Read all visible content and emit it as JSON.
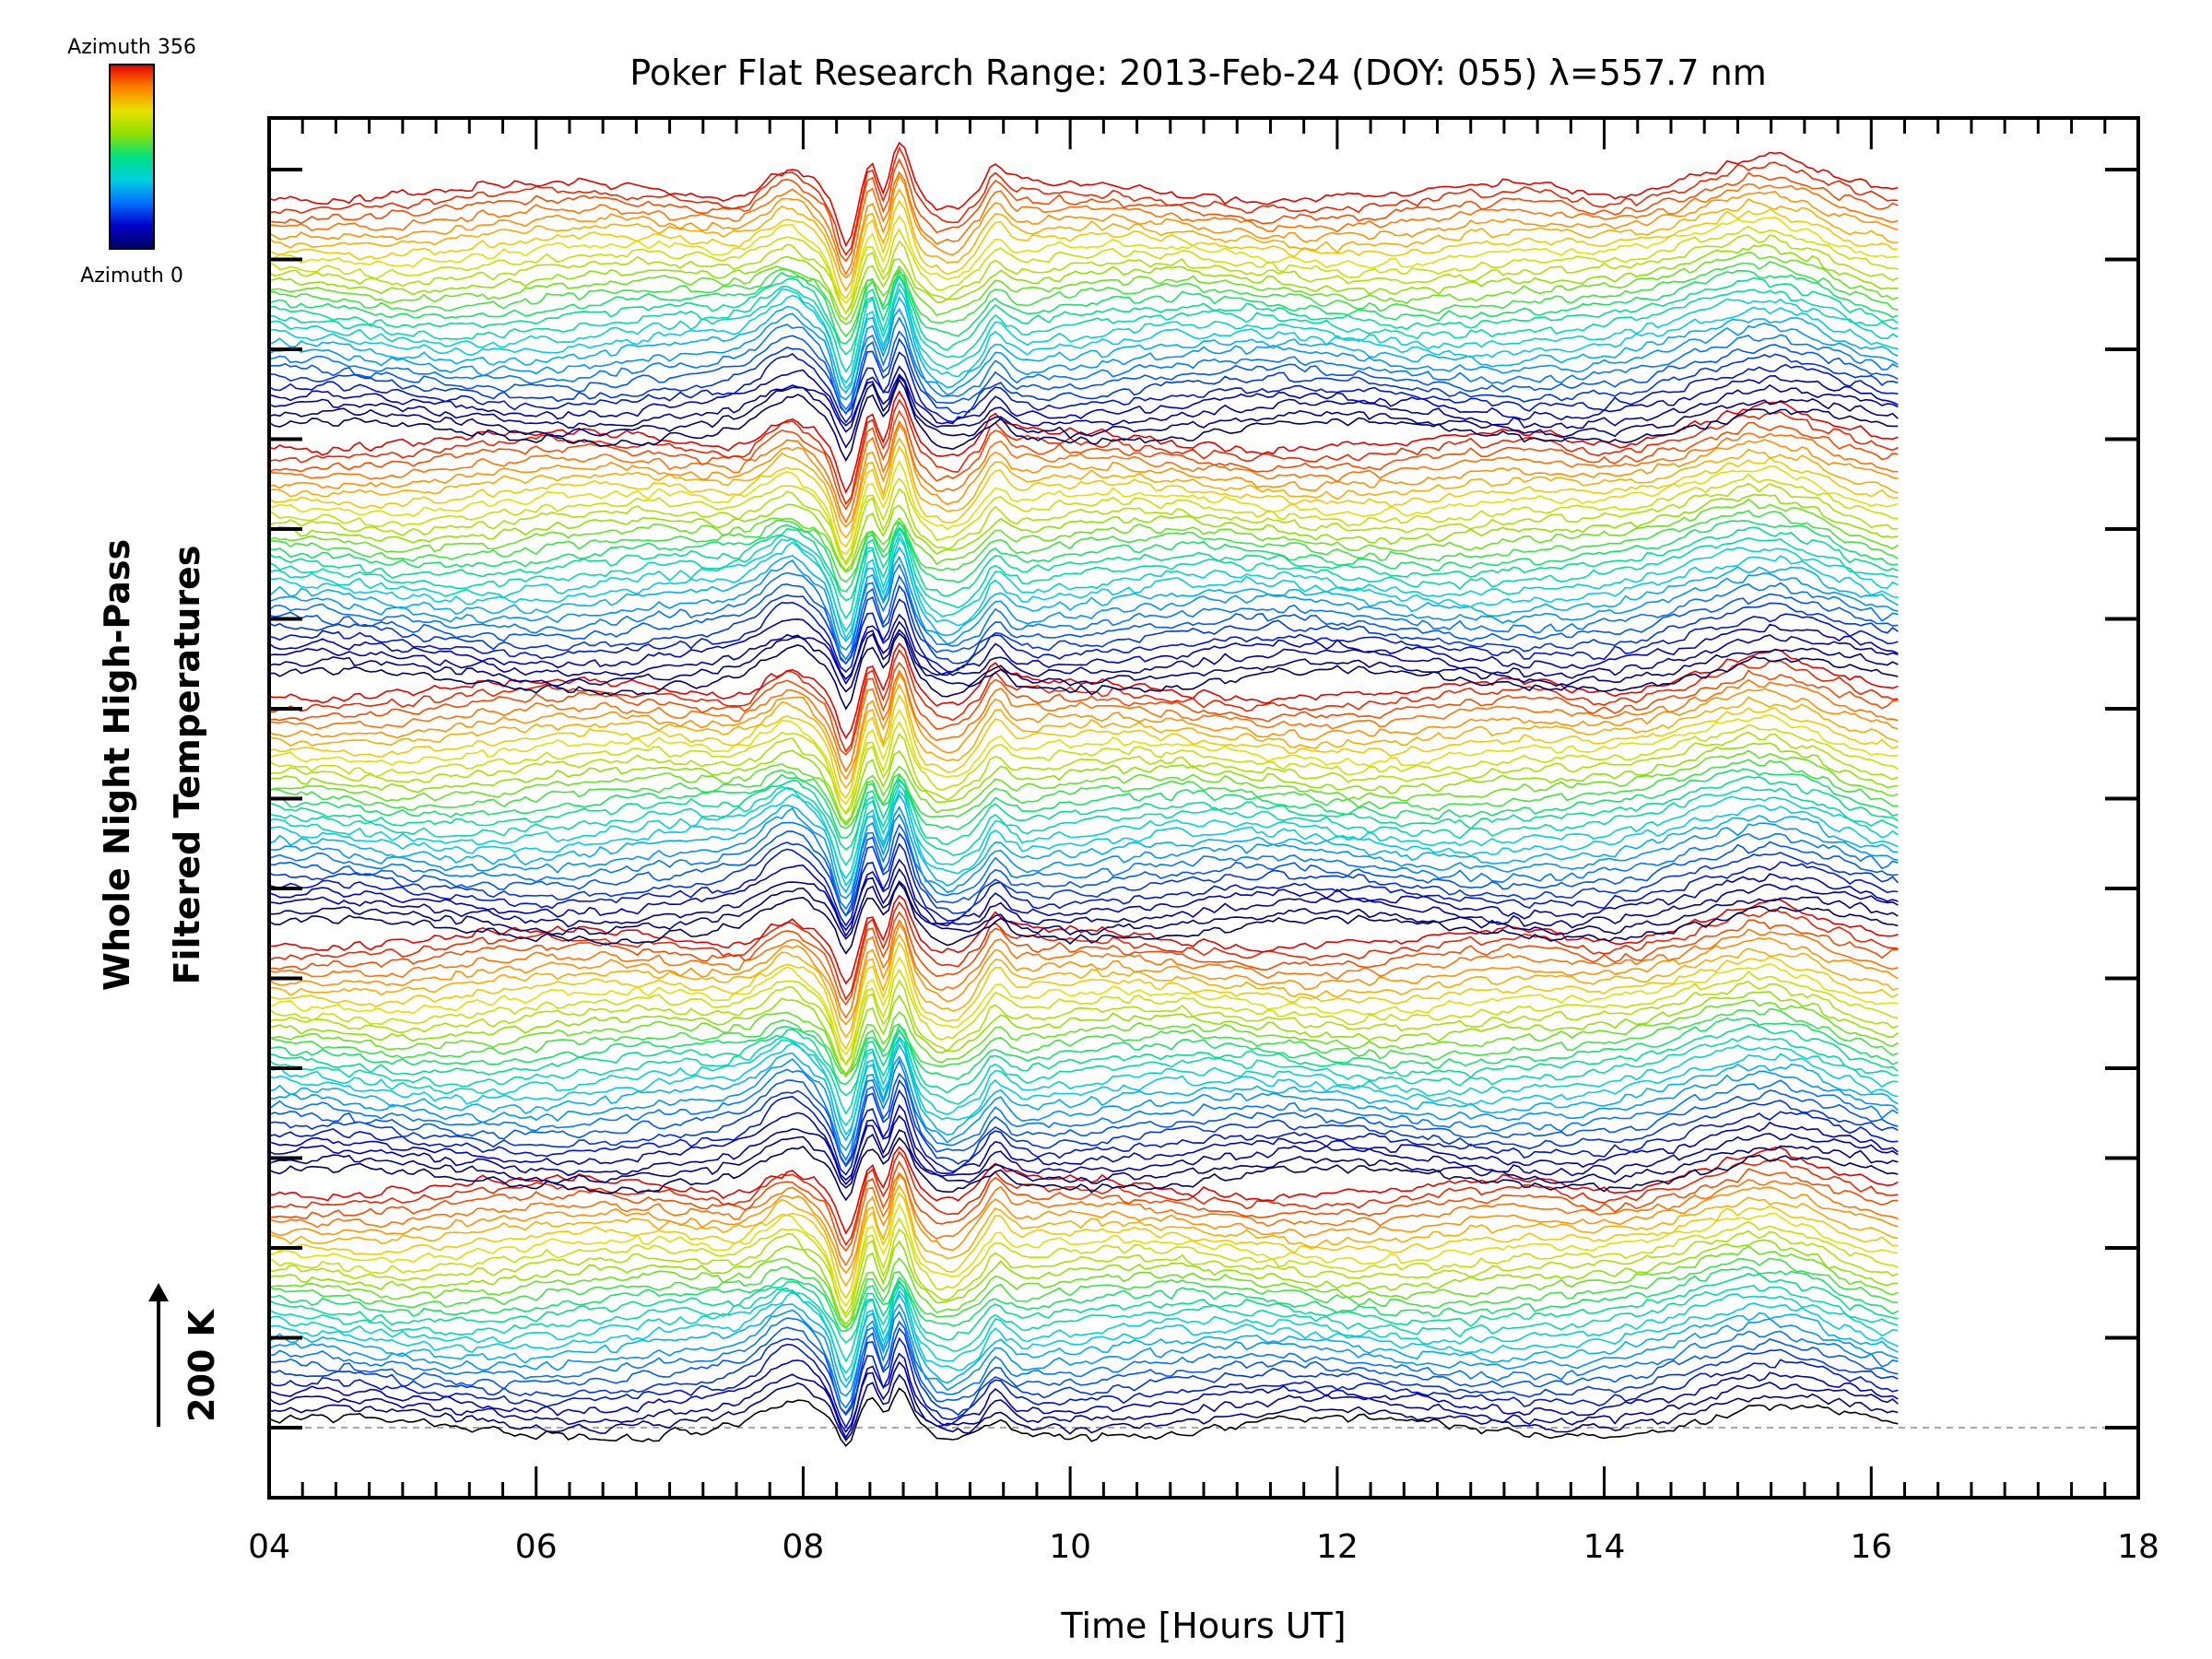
{
  "chart_data": {
    "type": "line",
    "title": "Poker Flat Research Range: 2013-Feb-24 (DOY: 055) λ=557.7 nm",
    "xlabel": "Time [Hours UT]",
    "ylabel_line1": "Whole Night High-Pass",
    "ylabel_line2": "Filtered Temperatures",
    "xlim": [
      4,
      18
    ],
    "x_ticks": [
      4,
      6,
      8,
      10,
      12,
      14,
      16,
      18
    ],
    "x_tick_labels": [
      "04",
      "06",
      "08",
      "10",
      "12",
      "14",
      "16",
      "18"
    ],
    "x_data_range": [
      4.0,
      16.2
    ],
    "scale_bar_label": "200 K",
    "colorbar": {
      "top_label": "Azimuth 356",
      "bottom_label": "Azimuth 0",
      "azimuth_min": 0,
      "azimuth_max": 356,
      "colors": [
        "#000060",
        "#0000c8",
        "#0070ff",
        "#00d0e0",
        "#00e080",
        "#90e000",
        "#e8e000",
        "#ff8000",
        "#e00000"
      ]
    },
    "series_description": "Stacked (offset) high-pass filtered temperature traces, one per azimuth, colour-coded from Azimuth 0 to Azimuth 356",
    "series_count": 140,
    "baseline_style": "dashed grey reference line at lowest trace",
    "features": [
      {
        "time": 8.3,
        "description": "sharp dip"
      },
      {
        "time": 8.7,
        "description": "large peak"
      },
      {
        "time": 9.45,
        "description": "secondary peak"
      },
      {
        "time": 15.3,
        "description": "broad hump"
      }
    ]
  }
}
